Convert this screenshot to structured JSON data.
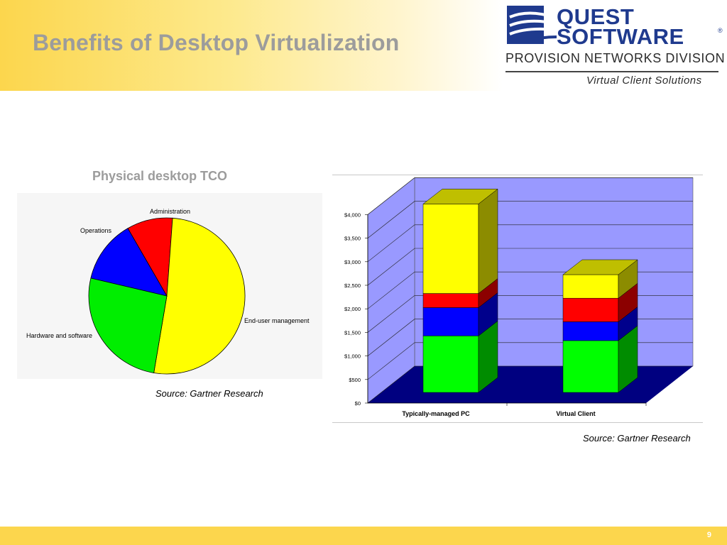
{
  "slide": {
    "title": "Benefits of Desktop Virtualization",
    "page_number": "9"
  },
  "logo": {
    "line1": "QUEST",
    "line2": "SOFTWARE",
    "registered": "®",
    "division": "PROVISION NETWORKS DIVISION",
    "tagline": "Virtual Client Solutions",
    "brand_color": "#1f3a8e"
  },
  "pie": {
    "title": "Physical desktop TCO",
    "source": "Source: Gartner Research"
  },
  "bar": {
    "source": "Source: Gartner Research"
  },
  "colors": {
    "header_band": "#fcd64d",
    "title_text": "#9c9c9c",
    "footer_band": "#fcd64d"
  },
  "chart_data": [
    {
      "type": "pie",
      "title": "Physical desktop TCO",
      "slices": [
        {
          "label": "Administration",
          "value": 9.5,
          "color": "#ff0000"
        },
        {
          "label": "End-user management",
          "value": 51.5,
          "color": "#ffff00"
        },
        {
          "label": "Hardware and software",
          "value": 26,
          "color": "#00ee00"
        },
        {
          "label": "Operations",
          "value": 13,
          "color": "#0000ff"
        }
      ],
      "start_angle_deg": -30,
      "direction": "clockwise",
      "legend": "none (labels adjacent to slices)"
    },
    {
      "type": "bar",
      "stacked": true,
      "three_d": true,
      "categories": [
        "Typically-managed PC",
        "Virtual Client"
      ],
      "series": [
        {
          "color": "#00ff00",
          "values": [
            1200,
            1100
          ]
        },
        {
          "color": "#0000ff",
          "values": [
            600,
            400
          ]
        },
        {
          "color": "#ff0000",
          "values": [
            300,
            500
          ]
        },
        {
          "color": "#ffff00",
          "values": [
            1900,
            500
          ]
        }
      ],
      "ylim": [
        0,
        4000
      ],
      "yticks": [
        "$0",
        "$500",
        "$1,000",
        "$1,500",
        "$2,000",
        "$2,500",
        "$3,000",
        "$3,500",
        "$4,000"
      ],
      "ytick_values": [
        0,
        500,
        1000,
        1500,
        2000,
        2500,
        3000,
        3500,
        4000
      ],
      "grid": true,
      "wall_color": "#9999ff",
      "floor_color": "#000080"
    }
  ]
}
